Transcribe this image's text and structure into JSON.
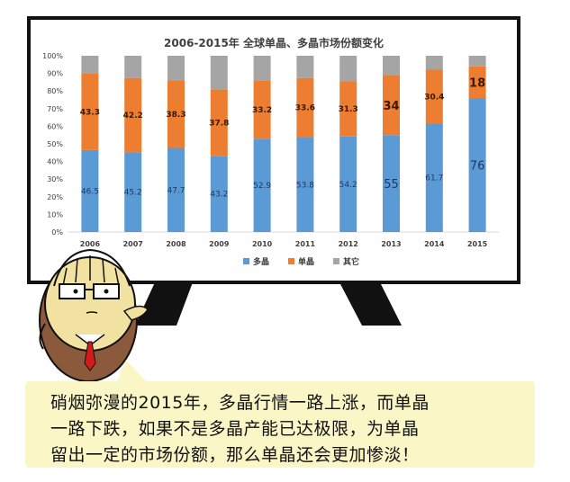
{
  "chart_data": {
    "type": "bar",
    "stacked": true,
    "title": "2006-2015年 全球单晶、多晶市场份额变化",
    "categories": [
      "2006",
      "2007",
      "2008",
      "2009",
      "2010",
      "2011",
      "2012",
      "2013",
      "2014",
      "2015"
    ],
    "series": [
      {
        "name": "多晶",
        "color": "#5b9bd5",
        "values": [
          46.5,
          45.2,
          47.7,
          43.2,
          52.9,
          53.8,
          54.2,
          55,
          61.7,
          76
        ]
      },
      {
        "name": "单晶",
        "color": "#ed7d31",
        "values": [
          43.3,
          42.2,
          38.3,
          37.8,
          33.2,
          33.6,
          31.3,
          34,
          30.4,
          18
        ]
      },
      {
        "name": "其它",
        "color": "#a5a5a5",
        "values": [
          10.2,
          12.6,
          14.0,
          19.0,
          13.9,
          12.6,
          14.5,
          11,
          7.9,
          6
        ]
      }
    ],
    "data_labels": {
      "多晶": [
        "46.5",
        "45.2",
        "47.7",
        "43.2",
        "52.9",
        "53.8",
        "54.2",
        "55",
        "61.7",
        "76"
      ],
      "单晶": [
        "43.3",
        "42.2",
        "38.3",
        "37.8",
        "33.2",
        "33.6",
        "31.3",
        "34",
        "30.4",
        "18"
      ]
    },
    "y_ticks": [
      "0%",
      "10%",
      "20%",
      "30%",
      "40%",
      "50%",
      "60%",
      "70%",
      "80%",
      "90%",
      "100%"
    ],
    "ylim": [
      0,
      100
    ],
    "grid": false,
    "legend_position": "bottom"
  },
  "caption": {
    "lines": [
      "硝烟弥漫的2015年，多晶行情一路上涨，而单晶",
      "一路下跌，如果不是多晶产能已达极限，为单晶",
      "留出一定的市场份额，那么单晶还会更加惨淡！"
    ]
  },
  "colors": {
    "board_border": "#111111",
    "caption_bg": "#fbf6c6",
    "character_face": "#f2e2a2",
    "character_suit": "#8b5a3c",
    "tie": "#d21a1a"
  }
}
